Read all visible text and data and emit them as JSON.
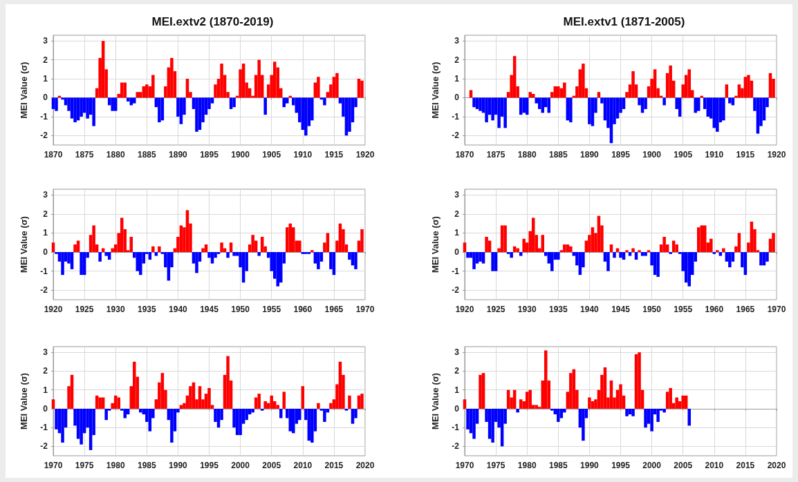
{
  "chart_data": [
    {
      "type": "bar",
      "title": "MEI.extv2 (1870-2019)",
      "ylabel": "MEI Value (σ)",
      "xlim": [
        1870,
        1920
      ],
      "xticks": [
        1870,
        1875,
        1880,
        1885,
        1890,
        1895,
        1900,
        1905,
        1910,
        1915,
        1920
      ],
      "ylim": [
        -2.5,
        3.3
      ],
      "yticks": [
        -2,
        -1,
        0,
        1,
        2,
        3
      ],
      "grid": true,
      "series": [
        {
          "color": "#ff0000",
          "x": [
            1871,
            1877,
            1877.5,
            1878,
            1878.5,
            1880.5,
            1881,
            1881.5,
            1883.5,
            1884,
            1884.5,
            1885,
            1885.5,
            1886,
            1888,
            1888.5,
            1889,
            1889.5,
            1891.5,
            1892,
            1896,
            1896.5,
            1897,
            1897.5,
            1898,
            1899.5,
            1900,
            1900.5,
            1901,
            1901.5,
            1902,
            1902.5,
            1903,
            1903.5,
            1904.5,
            1905,
            1905.5,
            1906,
            1906.5,
            1908,
            1912,
            1912.5,
            1914,
            1914.5,
            1915,
            1915.5,
            1919,
            1919.5
          ],
          "values": [
            0.1,
            0.5,
            2.1,
            3.0,
            1.5,
            0.2,
            0.8,
            0.8,
            0.3,
            0.3,
            0.6,
            0.7,
            0.6,
            1.2,
            0.6,
            1.6,
            2.1,
            1.4,
            1.0,
            0.3,
            0.7,
            1.0,
            1.8,
            1.2,
            0.3,
            0.1,
            1.5,
            1.8,
            0.8,
            0.5,
            0.1,
            1.2,
            2.0,
            1.2,
            0.7,
            1.2,
            1.9,
            1.6,
            0.5,
            0.1,
            0.8,
            1.1,
            0.3,
            0.7,
            1.1,
            1.3,
            1.0,
            0.9
          ]
        },
        {
          "color": "#0000ff",
          "x": [
            1870,
            1870.5,
            1871.5,
            1872,
            1872.5,
            1873,
            1873.5,
            1874,
            1874.5,
            1875,
            1875.5,
            1876,
            1876.5,
            1879,
            1879.5,
            1880,
            1882,
            1882.5,
            1883,
            1886.5,
            1887,
            1887.5,
            1890,
            1890.5,
            1891,
            1892.5,
            1893,
            1893.5,
            1894,
            1894.5,
            1895,
            1895.5,
            1898.5,
            1899,
            1904,
            1907,
            1907.5,
            1908.5,
            1909,
            1909.5,
            1910,
            1910.5,
            1911,
            1911.5,
            1913,
            1913.5,
            1916,
            1916.5,
            1917,
            1917.5,
            1918,
            1918.5
          ],
          "values": [
            -0.6,
            -0.7,
            -0.1,
            -0.4,
            -0.7,
            -1.1,
            -1.3,
            -1.2,
            -1.0,
            -0.8,
            -1.1,
            -0.9,
            -1.5,
            -0.4,
            -0.7,
            -0.7,
            -0.2,
            -0.4,
            -0.3,
            -0.5,
            -1.3,
            -1.2,
            -1.0,
            -1.4,
            -0.9,
            -0.6,
            -1.8,
            -1.7,
            -1.3,
            -0.9,
            -0.6,
            -0.3,
            -0.6,
            -0.5,
            -0.9,
            -0.5,
            -0.3,
            -0.4,
            -0.8,
            -1.3,
            -1.7,
            -2.0,
            -1.5,
            -1.2,
            -0.1,
            -0.4,
            -0.3,
            -1.0,
            -2.0,
            -1.8,
            -1.3,
            -0.5
          ]
        }
      ]
    },
    {
      "type": "bar",
      "title": "MEI.extv1 (1871-2005)",
      "ylabel": "MEI Value (σ)",
      "xlim": [
        1870,
        1920
      ],
      "xticks": [
        1870,
        1875,
        1880,
        1885,
        1890,
        1895,
        1900,
        1905,
        1910,
        1915,
        1920
      ],
      "ylim": [
        -2.5,
        3.3
      ],
      "yticks": [
        -2,
        -1,
        0,
        1,
        2,
        3
      ],
      "grid": true,
      "series": [
        {
          "color": "#ff0000",
          "x": [
            1871,
            1877,
            1877.5,
            1878,
            1878.5,
            1880.5,
            1881,
            1884,
            1884.5,
            1885,
            1885.5,
            1886,
            1887.5,
            1888,
            1888.5,
            1889,
            1889.5,
            1891.5,
            1896,
            1896.5,
            1897,
            1897.5,
            1899.5,
            1900,
            1900.5,
            1901,
            1901.5,
            1902.5,
            1903,
            1903.5,
            1905,
            1905.5,
            1906,
            1906.5,
            1908,
            1912,
            1913.5,
            1914,
            1914.5,
            1915,
            1915.5,
            1916,
            1919,
            1919.5
          ],
          "values": [
            0.4,
            0.3,
            1.2,
            2.2,
            0.6,
            0.3,
            0.2,
            0.3,
            0.6,
            0.6,
            0.5,
            0.8,
            0.1,
            0.6,
            1.5,
            1.8,
            0.5,
            0.3,
            0.3,
            0.7,
            1.4,
            0.7,
            0.6,
            1.0,
            1.5,
            0.5,
            0.1,
            1.3,
            1.7,
            0.9,
            0.7,
            1.2,
            1.5,
            0.4,
            0.1,
            0.7,
            0.1,
            0.7,
            0.5,
            1.1,
            1.2,
            0.9,
            1.3,
            1.0
          ]
        },
        {
          "color": "#0000ff",
          "x": [
            1871.5,
            1872,
            1872.5,
            1873,
            1873.5,
            1874,
            1874.5,
            1875,
            1875.5,
            1876,
            1876.5,
            1879,
            1879.5,
            1880,
            1881.5,
            1882,
            1882.5,
            1883,
            1883.5,
            1886.5,
            1887,
            1890,
            1890.5,
            1891,
            1892,
            1892.5,
            1893,
            1893.5,
            1894,
            1894.5,
            1895,
            1895.5,
            1898,
            1898.5,
            1899,
            1902,
            1904,
            1904.5,
            1907,
            1907.5,
            1908.5,
            1909,
            1909.5,
            1910,
            1910.5,
            1911,
            1911.5,
            1912.5,
            1913,
            1916.5,
            1917,
            1917.5,
            1918,
            1918.5
          ],
          "values": [
            -0.5,
            -0.6,
            -0.7,
            -0.8,
            -1.3,
            -0.9,
            -1.2,
            -0.9,
            -1.6,
            -1.0,
            -1.6,
            -0.9,
            -0.8,
            -0.9,
            -0.3,
            -0.6,
            -0.8,
            -0.5,
            -0.8,
            -1.2,
            -1.3,
            -1.4,
            -1.5,
            -0.8,
            -0.3,
            -1.2,
            -1.6,
            -2.4,
            -1.4,
            -1.1,
            -0.8,
            -0.6,
            -0.4,
            -0.8,
            -0.6,
            -0.4,
            -0.6,
            -1.0,
            -0.8,
            -0.7,
            -0.6,
            -1.0,
            -1.1,
            -1.6,
            -1.8,
            -1.3,
            -1.2,
            -0.3,
            -0.4,
            -0.7,
            -1.9,
            -1.5,
            -1.2,
            -0.5
          ]
        }
      ]
    },
    {
      "type": "bar",
      "ylabel": "MEI Value (σ)",
      "xlim": [
        1920,
        1970
      ],
      "xticks": [
        1920,
        1925,
        1930,
        1935,
        1940,
        1945,
        1950,
        1955,
        1960,
        1965,
        1970
      ],
      "ylim": [
        -2.5,
        3.3
      ],
      "yticks": [
        -2,
        -1,
        0,
        1,
        2,
        3
      ],
      "grid": true,
      "series": [
        {
          "color": "#ff0000",
          "x": [
            1920,
            1923.5,
            1924,
            1926,
            1926.5,
            1927,
            1928,
            1929.5,
            1930,
            1930.5,
            1931,
            1931.5,
            1932,
            1932.5,
            1936,
            1937,
            1939.5,
            1940,
            1940.5,
            1941,
            1941.5,
            1942,
            1944,
            1944.5,
            1947,
            1947.5,
            1948.5,
            1951.5,
            1952,
            1952.5,
            1953.5,
            1954,
            1957.5,
            1958,
            1958.5,
            1959,
            1959.5,
            1961.5,
            1963.5,
            1964,
            1965.5,
            1966,
            1966.5,
            1967,
            1969,
            1969.5
          ],
          "values": [
            0.5,
            0.4,
            0.6,
            0.9,
            1.4,
            0.4,
            0.2,
            0.2,
            0.4,
            1.0,
            1.8,
            1.2,
            0.1,
            0.8,
            0.3,
            0.3,
            0.2,
            0.8,
            1.4,
            1.3,
            2.2,
            1.5,
            0.2,
            0.4,
            0.5,
            0.2,
            0.5,
            0.4,
            0.9,
            0.6,
            0.8,
            0.3,
            1.3,
            1.5,
            1.3,
            0.6,
            0.6,
            0.1,
            0.5,
            1.0,
            0.6,
            1.5,
            1.2,
            0.4,
            0.6,
            1.2
          ]
        },
        {
          "color": "#0000ff",
          "x": [
            1920.5,
            1921,
            1921.5,
            1922,
            1922.5,
            1923,
            1924.5,
            1925,
            1925.5,
            1927.5,
            1928.5,
            1929,
            1933,
            1933.5,
            1934,
            1934.5,
            1935,
            1935.5,
            1936.5,
            1937.5,
            1938,
            1938.5,
            1939,
            1942.5,
            1943,
            1943.5,
            1945,
            1945.5,
            1946,
            1946.5,
            1948,
            1949,
            1949.5,
            1950,
            1950.5,
            1951,
            1953,
            1954.5,
            1955,
            1955.5,
            1956,
            1956.5,
            1957,
            1960,
            1960.5,
            1961,
            1962,
            1962.5,
            1963,
            1964.5,
            1965,
            1967.5,
            1968,
            1968.5
          ],
          "values": [
            -0.1,
            -0.5,
            -1.2,
            -0.5,
            -0.6,
            -0.9,
            -1.2,
            -1.2,
            -0.3,
            -0.5,
            -0.2,
            -0.4,
            -0.3,
            -1.0,
            -1.2,
            -0.6,
            -0.1,
            -0.4,
            -0.2,
            -0.1,
            -0.8,
            -1.5,
            -0.8,
            -0.6,
            -1.1,
            -0.5,
            -0.3,
            -0.6,
            -0.3,
            -0.1,
            -0.3,
            -0.2,
            -0.2,
            -0.8,
            -1.6,
            -1.0,
            -0.2,
            -0.3,
            -1.0,
            -1.4,
            -1.8,
            -1.6,
            -0.6,
            -0.1,
            -0.1,
            -0.1,
            -0.6,
            -0.9,
            -0.5,
            -0.9,
            -1.2,
            -0.4,
            -0.7,
            -0.9
          ]
        }
      ]
    },
    {
      "type": "bar",
      "ylabel": "MEI Value (σ)",
      "xlim": [
        1920,
        1970
      ],
      "xticks": [
        1920,
        1925,
        1930,
        1935,
        1940,
        1945,
        1950,
        1955,
        1960,
        1965,
        1970
      ],
      "ylim": [
        -2.5,
        3.3
      ],
      "yticks": [
        -2,
        -1,
        0,
        1,
        2,
        3
      ],
      "grid": true,
      "series": [
        {
          "color": "#ff0000",
          "x": [
            1920,
            1923.5,
            1924,
            1925.5,
            1926,
            1926.5,
            1928,
            1928.5,
            1929.5,
            1930,
            1930.5,
            1931,
            1931.5,
            1932,
            1932.5,
            1935.5,
            1936,
            1936.5,
            1937,
            1939.5,
            1940,
            1940.5,
            1941,
            1941.5,
            1942,
            1943.5,
            1944.5,
            1946,
            1947,
            1948,
            1949.5,
            1951.5,
            1952,
            1952.5,
            1953.5,
            1954,
            1957.5,
            1958,
            1958.5,
            1959,
            1959.5,
            1960.5,
            1961.5,
            1963.5,
            1964,
            1965.5,
            1966,
            1966.5,
            1967,
            1969,
            1969.5
          ],
          "values": [
            0.5,
            0.8,
            0.6,
            0.2,
            1.4,
            1.4,
            0.3,
            0.2,
            0.7,
            0.5,
            1.1,
            1.8,
            0.9,
            0.2,
            0.9,
            0.1,
            0.4,
            0.4,
            0.3,
            0.6,
            0.9,
            1.3,
            1.0,
            1.9,
            1.4,
            0.4,
            0.2,
            0.1,
            0.2,
            0.1,
            0.1,
            0.4,
            0.8,
            0.4,
            0.6,
            0.4,
            1.3,
            1.4,
            1.4,
            0.5,
            0.7,
            0.1,
            0.2,
            0.3,
            1.0,
            0.5,
            1.6,
            1.2,
            0.1,
            0.7,
            1.0
          ]
        },
        {
          "color": "#0000ff",
          "x": [
            1920.5,
            1921,
            1921.5,
            1922,
            1922.5,
            1923,
            1924.5,
            1925,
            1927,
            1927.5,
            1929,
            1933,
            1933.5,
            1934,
            1934.5,
            1935,
            1937.5,
            1938,
            1938.5,
            1939,
            1942.5,
            1943,
            1944,
            1945,
            1945.5,
            1946.5,
            1947.5,
            1948.5,
            1949,
            1950,
            1950.5,
            1951,
            1953,
            1954.5,
            1955,
            1955.5,
            1956,
            1956.5,
            1957,
            1960,
            1961,
            1962,
            1962.5,
            1963,
            1964.5,
            1965,
            1967.5,
            1968,
            1968.5
          ],
          "values": [
            -0.3,
            -0.3,
            -0.9,
            -0.6,
            -0.5,
            -0.6,
            -1.0,
            -1.0,
            -0.1,
            -0.3,
            -0.2,
            -0.2,
            -0.6,
            -1.0,
            -0.4,
            -0.4,
            -0.2,
            -0.7,
            -1.2,
            -0.8,
            -0.5,
            -1.0,
            -0.3,
            -0.3,
            -0.4,
            -0.2,
            -0.4,
            -0.2,
            -0.2,
            -0.7,
            -1.2,
            -1.3,
            -0.1,
            -0.1,
            -1.0,
            -1.6,
            -1.8,
            -1.2,
            -0.5,
            -0.1,
            -0.2,
            -0.5,
            -0.8,
            -0.5,
            -0.8,
            -1.2,
            -0.7,
            -0.7,
            -0.5
          ]
        }
      ]
    },
    {
      "type": "bar",
      "ylabel": "MEI Value (σ)",
      "xlim": [
        1970,
        2020
      ],
      "xticks": [
        1970,
        1975,
        1980,
        1985,
        1990,
        1995,
        2000,
        2005,
        2010,
        2015,
        2020
      ],
      "ylim": [
        -2.5,
        3.3
      ],
      "yticks": [
        -2,
        -1,
        0,
        1,
        2,
        3
      ],
      "grid": true,
      "series": [
        {
          "color": "#ff0000",
          "x": [
            1970,
            1972.5,
            1973,
            1977,
            1977.5,
            1978,
            1979.5,
            1980,
            1980.5,
            1982.5,
            1983,
            1983.5,
            1986.5,
            1987,
            1987.5,
            1988,
            1990.5,
            1991,
            1991.5,
            1992,
            1992.5,
            1993,
            1993.5,
            1994,
            1994.5,
            1995,
            1995.5,
            1997.5,
            1998,
            1998.5,
            2002.5,
            2003,
            2004,
            2004.5,
            2005,
            2005.5,
            2006,
            2007,
            2010,
            2012.5,
            2014.5,
            2015,
            2015.5,
            2016,
            2016.5,
            2017.5,
            2019,
            2019.5
          ],
          "values": [
            0.5,
            1.2,
            1.8,
            0.7,
            0.6,
            0.6,
            0.3,
            0.7,
            0.6,
            1.2,
            2.5,
            1.7,
            0.5,
            1.4,
            1.9,
            1.0,
            0.2,
            0.3,
            0.7,
            1.2,
            1.4,
            0.5,
            1.2,
            0.5,
            0.8,
            1.1,
            0.2,
            1.8,
            2.8,
            1.5,
            0.6,
            0.8,
            0.4,
            0.3,
            0.7,
            0.4,
            0.2,
            0.9,
            1.2,
            0.3,
            0.3,
            0.5,
            1.3,
            2.5,
            1.8,
            0.7,
            0.7,
            0.8
          ]
        },
        {
          "color": "#0000ff",
          "x": [
            1970.5,
            1971,
            1971.5,
            1972,
            1973.5,
            1974,
            1974.5,
            1975,
            1975.5,
            1976,
            1976.5,
            1978.5,
            1979,
            1981,
            1981.5,
            1982,
            1984,
            1984.5,
            1985,
            1985.5,
            1986,
            1988.5,
            1989,
            1989.5,
            1990,
            1996,
            1996.5,
            1997,
            1999,
            1999.5,
            2000,
            2000.5,
            2001,
            2001.5,
            2002,
            2003.5,
            2006.5,
            2007.5,
            2008,
            2008.5,
            2009,
            2009.5,
            2010.5,
            2011,
            2011.5,
            2012,
            2013,
            2013.5,
            2014,
            2017,
            2018,
            2018.5
          ],
          "values": [
            -1.1,
            -1.3,
            -1.8,
            -1.0,
            -0.9,
            -1.6,
            -1.9,
            -1.3,
            -1.0,
            -2.2,
            -1.4,
            -0.6,
            -0.1,
            -0.1,
            -0.5,
            -0.3,
            -0.2,
            -0.3,
            -0.7,
            -1.2,
            -0.5,
            -0.6,
            -1.8,
            -1.2,
            -0.2,
            -0.7,
            -1.0,
            -0.6,
            -1.0,
            -1.4,
            -1.4,
            -0.8,
            -0.6,
            -0.3,
            -0.2,
            -0.1,
            -0.5,
            -0.5,
            -1.2,
            -1.3,
            -0.8,
            -0.6,
            -0.6,
            -1.7,
            -1.8,
            -1.2,
            -0.1,
            -0.7,
            -0.2,
            -0.1,
            -0.8,
            -0.5
          ]
        }
      ]
    },
    {
      "type": "bar",
      "ylabel": "MEI Value (σ)",
      "xlim": [
        1970,
        2020
      ],
      "xticks": [
        1970,
        1975,
        1980,
        1985,
        1990,
        1995,
        2000,
        2005,
        2010,
        2015,
        2020
      ],
      "ylim": [
        -2.5,
        3.3
      ],
      "yticks": [
        -2,
        -1,
        0,
        1,
        2,
        3
      ],
      "grid": true,
      "series": [
        {
          "color": "#ff0000",
          "x": [
            1970,
            1972.5,
            1973,
            1977,
            1977.5,
            1978,
            1979,
            1979.5,
            1980,
            1980.5,
            1981,
            1981.5,
            1982,
            1982.5,
            1983,
            1983.5,
            1986.5,
            1987,
            1987.5,
            1988,
            1990,
            1990.5,
            1991,
            1991.5,
            1992,
            1992.5,
            1993,
            1993.5,
            1994,
            1994.5,
            1995,
            1995.5,
            1997.5,
            1998,
            1998.5,
            2002.5,
            2003,
            2003.5,
            2004,
            2004.5,
            2005,
            2005.5
          ],
          "values": [
            0.5,
            1.8,
            1.9,
            1.0,
            0.6,
            1.0,
            0.5,
            0.4,
            0.9,
            1.0,
            0.2,
            0.2,
            0.1,
            1.5,
            3.1,
            1.5,
            0.9,
            1.9,
            2.1,
            1.0,
            0.6,
            0.4,
            0.5,
            1.0,
            1.8,
            2.2,
            0.6,
            1.5,
            0.6,
            1.0,
            1.3,
            0.7,
            2.9,
            3.0,
            1.0,
            0.9,
            1.1,
            0.3,
            0.6,
            0.4,
            0.7,
            0.7
          ]
        },
        {
          "color": "#0000ff",
          "x": [
            1970.5,
            1971,
            1971.5,
            1972,
            1973.5,
            1974,
            1974.5,
            1975,
            1975.5,
            1976,
            1976.5,
            1978.5,
            1984,
            1984.5,
            1985,
            1985.5,
            1986,
            1988.5,
            1989,
            1989.5,
            1996,
            1996.5,
            1997,
            1999,
            1999.5,
            2000,
            2000.5,
            2001,
            2001.5,
            2002,
            2006
          ],
          "values": [
            -1.1,
            -1.3,
            -1.6,
            -0.8,
            -0.7,
            -1.6,
            -1.8,
            -0.7,
            -1.0,
            -2.0,
            -0.8,
            -0.2,
            -0.1,
            -0.3,
            -0.7,
            -0.5,
            -0.2,
            -1.0,
            -1.7,
            -0.5,
            -0.4,
            -0.3,
            -0.4,
            -1.0,
            -0.8,
            -1.2,
            -0.3,
            -0.7,
            -0.1,
            -0.2,
            -0.9
          ]
        }
      ]
    }
  ]
}
